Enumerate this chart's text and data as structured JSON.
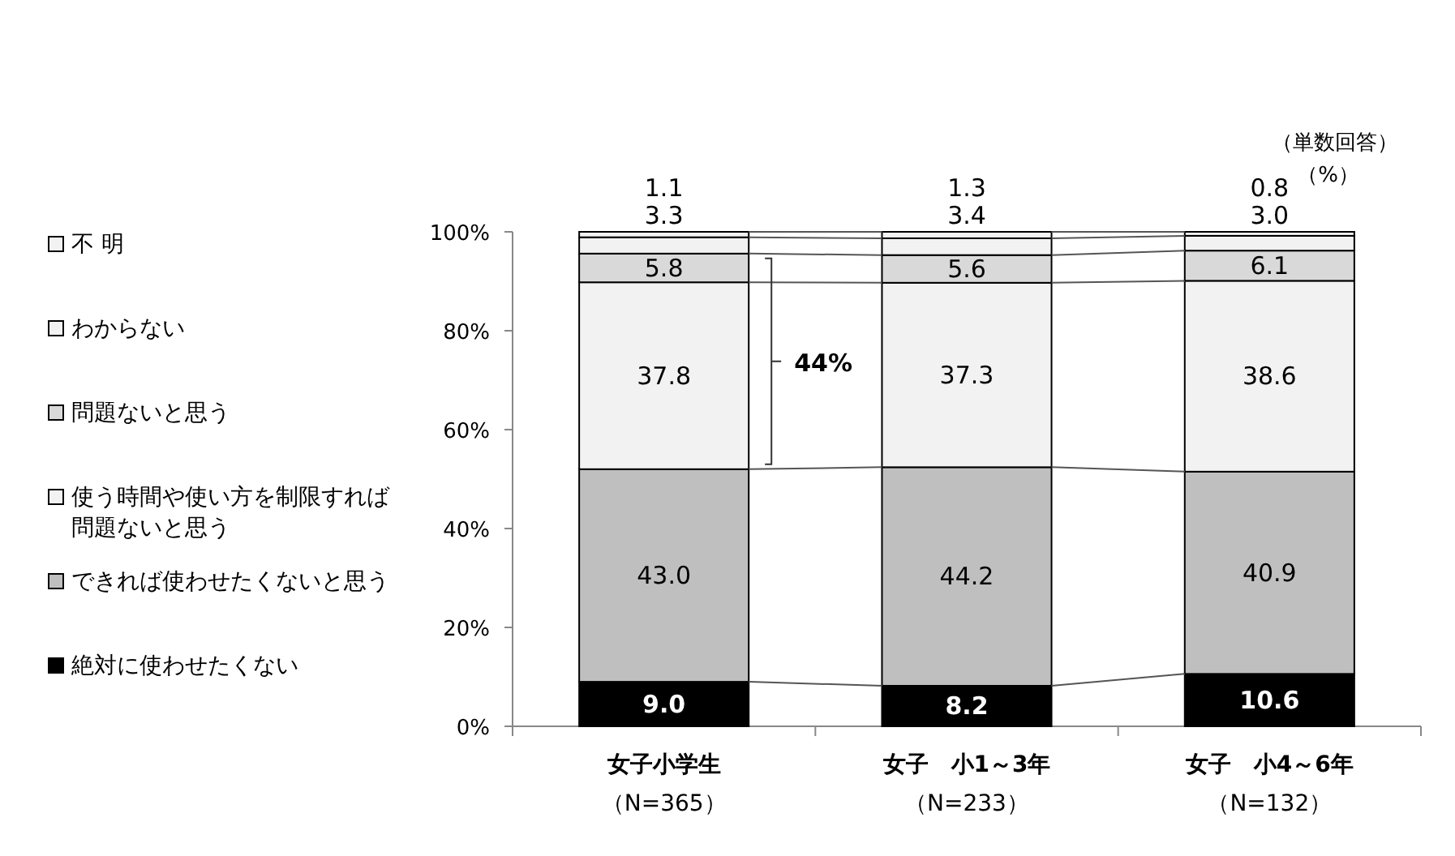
{
  "chart_data": {
    "type": "bar",
    "stacked": true,
    "legend": "left",
    "grid": false,
    "categories": [
      "女子小学生（N=365）",
      "女子　小1～3年（N=233）",
      "女子　小4～6年（N=132）"
    ],
    "series": [
      {
        "name": "絶対に使わせたくない",
        "color": "#000000",
        "values": [
          9.0,
          8.2,
          10.6
        ],
        "value_labels": [
          "9.0",
          "8.2",
          "10.6"
        ]
      },
      {
        "name": "できれば使わせたくないと思う",
        "color": "#bfbfbf",
        "values": [
          43.0,
          44.2,
          40.9
        ],
        "value_labels": [
          "43.0",
          "44.2",
          "40.9"
        ]
      },
      {
        "name": "使う時間や使い方を制限すれば問題ないと思う",
        "color": "#f2f2f2",
        "values": [
          37.8,
          37.3,
          38.6
        ],
        "value_labels": [
          "37.8",
          "37.3",
          "38.6"
        ]
      },
      {
        "name": "問題ないと思う",
        "color": "#d9d9d9",
        "values": [
          5.8,
          5.6,
          6.1
        ],
        "value_labels": [
          "5.8",
          "5.6",
          "6.1"
        ]
      },
      {
        "name": "わからない",
        "color": "#f2f2f2",
        "values": [
          3.3,
          3.4,
          3.0
        ],
        "value_labels": [
          "3.3",
          "3.4",
          "3.0"
        ]
      },
      {
        "name": "不 明",
        "color": "#f2f2f2",
        "values": [
          1.1,
          1.3,
          0.8
        ],
        "value_labels": [
          "1.1",
          "1.3",
          "0.8"
        ]
      }
    ],
    "ylim": [
      0,
      100
    ],
    "yticks": [
      {
        "value": 0,
        "label": "0%"
      },
      {
        "value": 20,
        "label": "20%"
      },
      {
        "value": 40,
        "label": "40%"
      },
      {
        "value": 60,
        "label": "60%"
      },
      {
        "value": 80,
        "label": "80%"
      },
      {
        "value": 100,
        "label": "100%"
      }
    ],
    "annotations": [
      "（単数回答）",
      "（%）",
      "44%"
    ]
  }
}
